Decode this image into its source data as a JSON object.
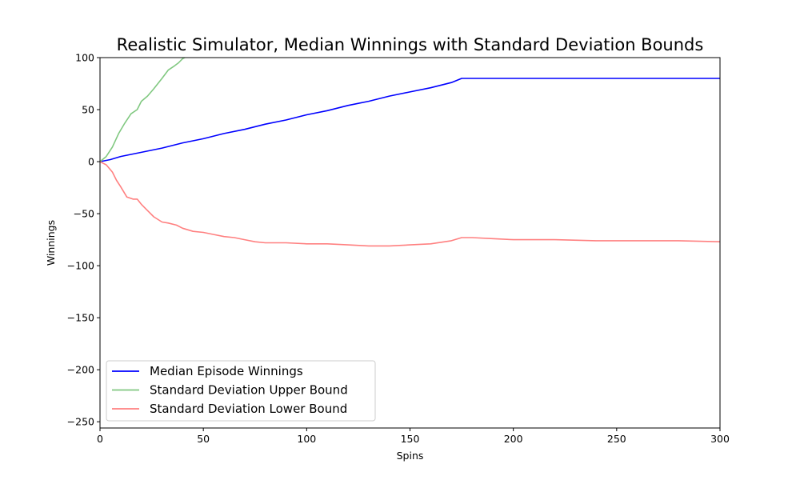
{
  "chart_data": {
    "type": "line",
    "title": "Realistic Simulator, Median Winnings with Standard Deviation Bounds",
    "xlabel": "Spins",
    "ylabel": "Winnings",
    "xlim": [
      0,
      300
    ],
    "ylim": [
      -256,
      100
    ],
    "xticks": [
      0,
      50,
      100,
      150,
      200,
      250,
      300
    ],
    "yticks": [
      -250,
      -200,
      -150,
      -100,
      -50,
      0,
      50,
      100
    ],
    "grid": false,
    "legend_position": "lower-left",
    "series": [
      {
        "name": "Median Episode Winnings",
        "color": "#0000ff",
        "x": [
          0,
          5,
          10,
          20,
          30,
          40,
          50,
          60,
          70,
          80,
          90,
          100,
          110,
          120,
          130,
          140,
          150,
          160,
          170,
          175,
          176,
          200,
          250,
          300
        ],
        "y": [
          0,
          2,
          5,
          9,
          13,
          18,
          22,
          27,
          31,
          36,
          40,
          45,
          49,
          54,
          58,
          63,
          67,
          71,
          76,
          80,
          80,
          80,
          80,
          80
        ]
      },
      {
        "name": "Standard Deviation Upper Bound",
        "color": "#80c880",
        "x": [
          0,
          3,
          6,
          9,
          12,
          15,
          18,
          20,
          23,
          26,
          30,
          33,
          36,
          38,
          40,
          42,
          45
        ],
        "y": [
          0,
          5,
          14,
          27,
          37,
          46,
          50,
          58,
          63,
          70,
          80,
          88,
          92,
          95,
          99,
          101,
          106
        ]
      },
      {
        "name": "Standard Deviation Lower Bound",
        "color": "#ff8080",
        "x": [
          0,
          3,
          6,
          8,
          10,
          13,
          16,
          18,
          20,
          23,
          26,
          30,
          33,
          37,
          40,
          45,
          50,
          55,
          60,
          65,
          70,
          75,
          80,
          90,
          100,
          110,
          120,
          130,
          140,
          150,
          160,
          170,
          175,
          180,
          190,
          200,
          220,
          240,
          260,
          280,
          300
        ],
        "y": [
          0,
          -3,
          -10,
          -18,
          -24,
          -34,
          -36,
          -36,
          -41,
          -47,
          -53,
          -58,
          -59,
          -61,
          -64,
          -67,
          -68,
          -70,
          -72,
          -73,
          -75,
          -77,
          -78,
          -78,
          -79,
          -79,
          -80,
          -81,
          -81,
          -80,
          -79,
          -76,
          -73,
          -73,
          -74,
          -75,
          -75,
          -76,
          -76,
          -76,
          -77
        ]
      }
    ]
  }
}
